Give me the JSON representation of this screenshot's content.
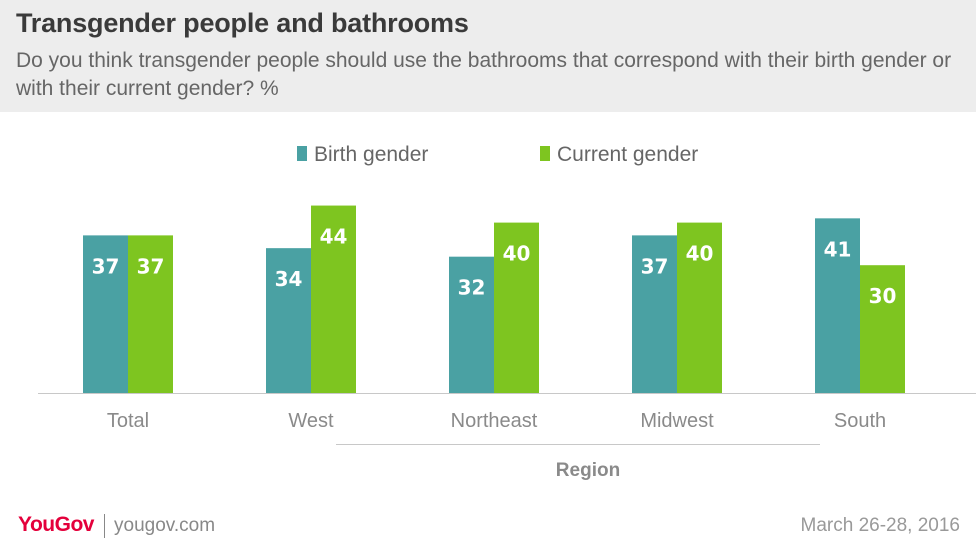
{
  "header": {
    "title": "Transgender people and bathrooms",
    "subtitle": "Do you think transgender people should use the bathrooms that correspond with their birth gender or with their current gender? %"
  },
  "chart_data": {
    "type": "bar",
    "categories": [
      "Total",
      "West",
      "Northeast",
      "Midwest",
      "South"
    ],
    "group_label": "Region",
    "series": [
      {
        "name": "Birth gender",
        "color": "#4aa1a3",
        "values": [
          37,
          34,
          32,
          37,
          41
        ]
      },
      {
        "name": "Current gender",
        "color": "#7ec520",
        "values": [
          37,
          44,
          40,
          40,
          30
        ]
      }
    ],
    "legend_position": "top-center",
    "grid": false,
    "ylim": [
      0,
      46
    ]
  },
  "footer": {
    "logo_text": "YouGov",
    "site": "yougov.com",
    "date": "March 26-28, 2016"
  }
}
